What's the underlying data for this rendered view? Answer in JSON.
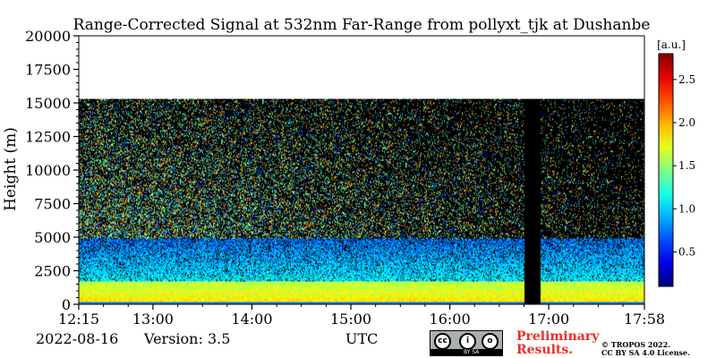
{
  "chart_data": {
    "type": "heatmap",
    "title": "Range-Corrected Signal at 532nm Far-Range from pollyxt_tjk at Dushanbe",
    "ylabel": "Height (m)",
    "xlabel": "UTC",
    "x_range": [
      "12:15",
      "17:58"
    ],
    "xlim_minutes": [
      735,
      1078
    ],
    "ylim": [
      0,
      20000
    ],
    "data_top_height": 15300,
    "x_ticks": [
      {
        "label": "12:15",
        "minutes": 735
      },
      {
        "label": "13:00",
        "minutes": 780
      },
      {
        "label": "14:00",
        "minutes": 840
      },
      {
        "label": "15:00",
        "minutes": 900
      },
      {
        "label": "16:00",
        "minutes": 960
      },
      {
        "label": "17:00",
        "minutes": 1020
      },
      {
        "label": "17:58",
        "minutes": 1078
      }
    ],
    "y_ticks": [
      0,
      2500,
      5000,
      7500,
      10000,
      12500,
      15000,
      17500,
      20000
    ],
    "colorbar": {
      "unit": "[a.u.]",
      "range": [
        0.1,
        2.8
      ],
      "ticks": [
        0.5,
        1.0,
        1.5,
        2.0,
        2.5
      ],
      "colormap": "jet"
    },
    "boundary_layer_top": 5000,
    "cloud_height": 4650,
    "no_data_gap": {
      "start": "16:45",
      "end": "16:55"
    },
    "background_color": "#000000"
  },
  "footer": {
    "date": "2022-08-16",
    "version": "Version: 3.5",
    "utc_label": "UTC",
    "preliminary_line1": "Preliminary",
    "preliminary_line2": "Results.",
    "copyright": "© TROPOS 2022.",
    "license": "CC BY SA 4.0 License.",
    "cc_badge_text": "BY   SA"
  }
}
